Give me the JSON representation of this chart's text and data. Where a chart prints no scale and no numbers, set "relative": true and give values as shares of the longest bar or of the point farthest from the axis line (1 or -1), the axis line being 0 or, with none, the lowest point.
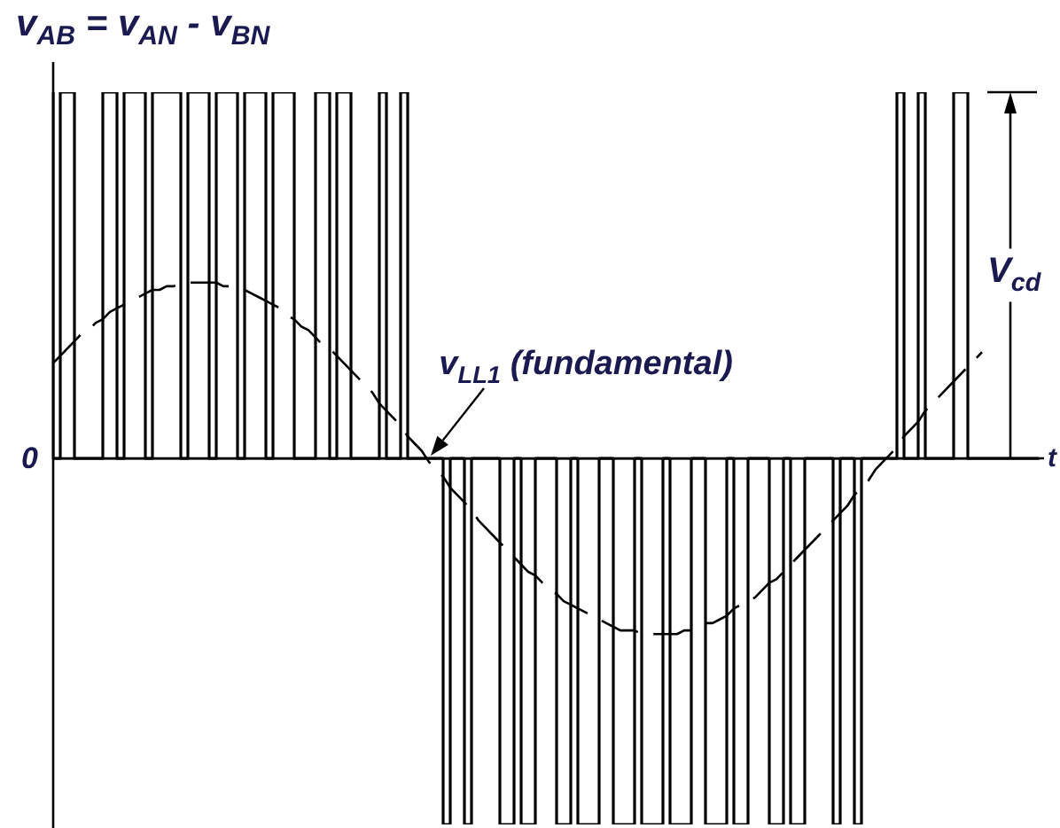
{
  "chart_data": {
    "type": "step",
    "relative": true,
    "marker": "none",
    "ylabel": "v$_{AB}$ = v$_{AN}$ - v$_{BN}$",
    "xlabel": "t",
    "categories": [
      null,
      null,
      null,
      null,
      null,
      null,
      null,
      null,
      null,
      null,
      null,
      null,
      null,
      null,
      null,
      null,
      null,
      null,
      null,
      null,
      null,
      null,
      null,
      null,
      null,
      null,
      null,
      null,
      null,
      null,
      null,
      null,
      null,
      null,
      null,
      null,
      null,
      null,
      null,
      null,
      null,
      null,
      null,
      null,
      null,
      null,
      null,
      null,
      null,
      null,
      null,
      null,
      null,
      null,
      null,
      null,
      null,
      null,
      null,
      null,
      null,
      null,
      null,
      null,
      null,
      null,
      null,
      null,
      null,
      null,
      null,
      null,
      null,
      null,
      null,
      null,
      null,
      null,
      null,
      null,
      null,
      null,
      null,
      null,
      null,
      null,
      null,
      null,
      null,
      null,
      null,
      null,
      null,
      null,
      null,
      null,
      null,
      null,
      null,
      null,
      null,
      null,
      null,
      null,
      null,
      null,
      null,
      null,
      null,
      null,
      null,
      null,
      null,
      null,
      null,
      null,
      null,
      null,
      null,
      null,
      null,
      null,
      null,
      null,
      null,
      null,
      null,
      null,
      null,
      null,
      null,
      null,
      null,
      null,
      null,
      null,
      null,
      null,
      null,
      null
    ],
    "series": [
      {
        "color": "#000000",
        "line_style": "solid",
        "values": [
          1,
          0,
          1,
          1,
          0,
          0,
          0,
          0,
          1,
          1,
          0,
          1,
          1,
          1,
          0,
          1,
          1,
          1,
          1,
          0,
          1,
          1,
          1,
          0,
          1,
          1,
          1,
          0,
          1,
          1,
          1,
          0,
          1,
          1,
          1,
          0,
          0,
          0,
          1,
          1,
          0,
          1,
          1,
          0,
          0,
          0,
          0,
          1,
          0,
          0,
          1,
          0,
          0,
          0,
          0,
          0,
          -1,
          0,
          0,
          -1,
          0,
          0,
          0,
          0,
          -1,
          -1,
          0,
          -1,
          -1,
          0,
          0,
          0,
          -1,
          -1,
          0,
          -1,
          -1,
          -1,
          0,
          0,
          -1,
          -1,
          -1,
          0,
          -1,
          -1,
          -1,
          0,
          -1,
          -1,
          -1,
          0,
          0,
          -1,
          -1,
          -1,
          0,
          -1,
          -1,
          0,
          0,
          0,
          -1,
          -1,
          0,
          -1,
          -1,
          0,
          0,
          0,
          0,
          -1,
          0,
          0,
          -1,
          0,
          0,
          0,
          0,
          0,
          1,
          0,
          0,
          1,
          0,
          0,
          0,
          0,
          1,
          1,
          0,
          0,
          0,
          0,
          0,
          0,
          0,
          0,
          0,
          0
        ]
      },
      {
        "type": "line",
        "name": "v$_{LL1}$ (fundamental)",
        "color": "#000000",
        "line_style": "dashed",
        "values": [
          0.26,
          0.28,
          0.3,
          0.32,
          0.34,
          0.35,
          0.37,
          0.38,
          0.4,
          0.41,
          0.42,
          0.43,
          0.44,
          0.45,
          0.46,
          0.46,
          0.47,
          0.47,
          0.48,
          0.48,
          0.48,
          0.48,
          0.48,
          0.48,
          0.47,
          0.47,
          0.46,
          0.46,
          0.45,
          0.44,
          0.43,
          0.42,
          0.41,
          0.39,
          0.38,
          0.36,
          0.35,
          0.33,
          0.31,
          0.3,
          0.28,
          0.26,
          0.24,
          0.22,
          0.2,
          0.18,
          0.15,
          0.13,
          0.11,
          0.09,
          0.06,
          0.04,
          0.02,
          -0.01,
          -0.03,
          -0.05,
          -0.08,
          -0.1,
          -0.12,
          -0.14,
          -0.17,
          -0.19,
          -0.21,
          -0.23,
          -0.25,
          -0.27,
          -0.29,
          -0.31,
          -0.32,
          -0.34,
          -0.36,
          -0.37,
          -0.39,
          -0.4,
          -0.41,
          -0.42,
          -0.43,
          -0.44,
          -0.45,
          -0.46,
          -0.47,
          -0.47,
          -0.47,
          -0.48,
          -0.48,
          -0.48,
          -0.48,
          -0.48,
          -0.48,
          -0.47,
          -0.47,
          -0.46,
          -0.45,
          -0.45,
          -0.44,
          -0.43,
          -0.41,
          -0.4,
          -0.39,
          -0.38,
          -0.36,
          -0.34,
          -0.33,
          -0.31,
          -0.29,
          -0.27,
          -0.25,
          -0.23,
          -0.21,
          -0.19,
          -0.17,
          -0.15,
          -0.13,
          -0.1,
          -0.08,
          -0.06,
          -0.03,
          -0.01,
          0.01,
          0.03,
          0.06,
          0.08,
          0.1,
          0.13,
          0.15,
          0.17,
          0.19,
          0.21,
          0.23,
          0.25,
          0.27,
          0.29,
          null,
          null,
          null,
          null,
          null,
          null,
          null,
          null
        ]
      }
    ],
    "annotations": [
      "0",
      "V$_{cd}$"
    ]
  }
}
